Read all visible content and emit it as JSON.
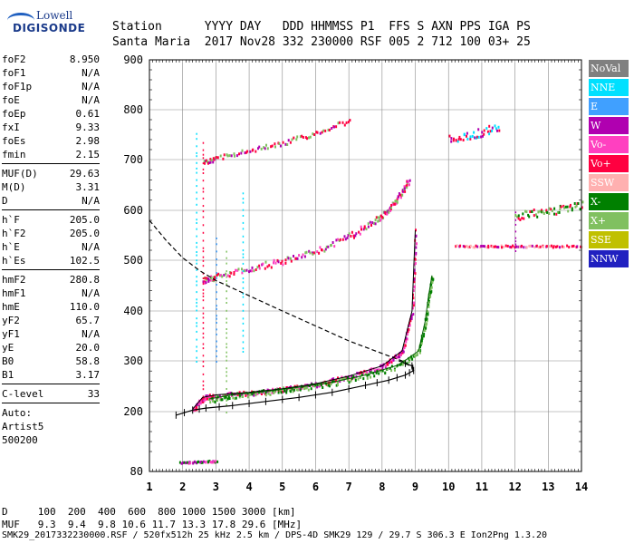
{
  "logo": {
    "line1": "Lowell",
    "line2": "DIGISONDE"
  },
  "header": {
    "row1": "Station      YYYY DAY   DDD HHMMSS P1  FFS S AXN PPS IGA PS",
    "row2": "Santa Maria  2017 Nov28 332 230000 RSF 005 2 712 100 03+ 25"
  },
  "params": {
    "group1": [
      {
        "k": "foF2",
        "v": "8.950"
      },
      {
        "k": "foF1",
        "v": "N/A"
      },
      {
        "k": "foF1p",
        "v": "N/A"
      },
      {
        "k": "foE",
        "v": "N/A"
      },
      {
        "k": "foEp",
        "v": "0.61"
      },
      {
        "k": "fxI",
        "v": "9.33"
      },
      {
        "k": "foEs",
        "v": "2.98"
      },
      {
        "k": "fmin",
        "v": "2.15"
      }
    ],
    "group2": [
      {
        "k": "MUF(D)",
        "v": "29.63"
      },
      {
        "k": "M(D)",
        "v": "3.31"
      },
      {
        "k": "D",
        "v": "N/A"
      }
    ],
    "group3": [
      {
        "k": "h`F",
        "v": "205.0"
      },
      {
        "k": "h`F2",
        "v": "205.0"
      },
      {
        "k": "h`E",
        "v": "N/A"
      },
      {
        "k": "h`Es",
        "v": "102.5"
      }
    ],
    "group4": [
      {
        "k": "hmF2",
        "v": "280.8"
      },
      {
        "k": "hmF1",
        "v": "N/A"
      },
      {
        "k": "hmE",
        "v": "110.0"
      },
      {
        "k": "yF2",
        "v": "65.7"
      },
      {
        "k": "yF1",
        "v": "N/A"
      },
      {
        "k": "yE",
        "v": "20.0"
      },
      {
        "k": "B0",
        "v": "58.8"
      },
      {
        "k": "B1",
        "v": "3.17"
      }
    ],
    "group5": [
      {
        "k": "C-level",
        "v": "33"
      }
    ],
    "auto": [
      "Auto:",
      "Artist5",
      "500200"
    ]
  },
  "legend": [
    {
      "label": "NoVal",
      "color": "#808080"
    },
    {
      "label": "NNE",
      "color": "#00e0ff"
    },
    {
      "label": "E",
      "color": "#40a0ff"
    },
    {
      "label": "W",
      "color": "#b000b0"
    },
    {
      "label": "Vo-",
      "color": "#ff40c0"
    },
    {
      "label": "Vo+",
      "color": "#ff0040"
    },
    {
      "label": "SSW",
      "color": "#ffb0b0"
    },
    {
      "label": "X-",
      "color": "#008000"
    },
    {
      "label": "X+",
      "color": "#80c060"
    },
    {
      "label": "SSE",
      "color": "#c0c000"
    },
    {
      "label": "NNW",
      "color": "#2020c0"
    }
  ],
  "footer": {
    "row1": "D     100  200  400  600  800 1000 1500 3000 [km]",
    "row2": "MUF   9.3  9.4  9.8 10.6 11.7 13.3 17.8 29.6 [MHz]",
    "line": "SMK29_2017332230000.RSF / 520fx512h 25 kHz 2.5 km / DPS-4D SMK29 129 / 29.7 S 306.3 E Ion2Png 1.3.20"
  },
  "chart_data": {
    "type": "scatter",
    "x_ticks": [
      "1",
      "2",
      "3",
      "4",
      "5",
      "6",
      "7",
      "8",
      "9",
      "10",
      "11",
      "12",
      "13",
      "14"
    ],
    "y_ticks": [
      "80",
      "200",
      "300",
      "400",
      "500",
      "600",
      "700",
      "800",
      "900"
    ],
    "xlim": [
      1,
      14
    ],
    "ylim": [
      80,
      900
    ],
    "grid": true,
    "traces": {
      "o_trace_F2": {
        "x": [
          2.3,
          2.6,
          3.0,
          4.0,
          5.0,
          6.0,
          7.0,
          8.0,
          8.6,
          8.9,
          9.0
        ],
        "y": [
          205,
          228,
          233,
          238,
          245,
          255,
          270,
          290,
          320,
          400,
          560
        ]
      },
      "x_trace_F2": {
        "x": [
          2.8,
          3.5,
          4.5,
          5.5,
          6.5,
          7.5,
          8.5,
          9.1,
          9.3,
          9.4,
          9.5
        ],
        "y": [
          225,
          233,
          240,
          248,
          258,
          272,
          292,
          320,
          380,
          430,
          470
        ]
      },
      "second_hop_o": {
        "x": [
          2.6,
          3.0,
          4.0,
          5.0,
          6.0,
          7.0,
          7.8,
          8.2,
          8.5,
          8.8
        ],
        "y": [
          462,
          470,
          485,
          500,
          520,
          550,
          580,
          605,
          630,
          660
        ]
      },
      "third_hop_o": {
        "x": [
          2.6,
          3.0,
          4.0,
          5.0,
          6.0,
          7.0
        ],
        "y": [
          695,
          705,
          720,
          735,
          755,
          780
        ]
      },
      "es_trace": {
        "x": [
          1.9,
          2.2,
          2.5,
          2.8,
          3.0
        ],
        "y": [
          100,
          100,
          101,
          102,
          102
        ]
      },
      "far_range_cluster": {
        "x": [
          10.0,
          10.5,
          11.0,
          11.5
        ],
        "y": [
          742,
          750,
          758,
          765
        ]
      },
      "oblique_right": {
        "x": [
          12.0,
          12.5,
          13.0,
          13.5,
          14.0
        ],
        "y": [
          590,
          595,
          600,
          605,
          612
        ]
      },
      "oblique_band_530": {
        "x": [
          10.2,
          10.8,
          11.4,
          12.0,
          12.6,
          13.2,
          14.0
        ],
        "y": [
          530,
          530,
          530,
          530,
          530,
          530,
          530
        ]
      }
    },
    "model_profile_curve": {
      "x": [
        1.8,
        2.3,
        2.7,
        3.5,
        4.5,
        5.5,
        6.5,
        7.5,
        8.2,
        8.7,
        8.95,
        8.9,
        8.5
      ],
      "y": [
        193,
        203,
        207,
        212,
        220,
        228,
        238,
        252,
        262,
        272,
        281,
        290,
        300
      ]
    },
    "model_dashed_curve": {
      "x": [
        1.0,
        1.5,
        2.0,
        2.5,
        3.0,
        4.0,
        5.0,
        6.0,
        7.0,
        8.0,
        8.6,
        8.95
      ],
      "y": [
        580,
        540,
        505,
        480,
        460,
        430,
        400,
        370,
        340,
        315,
        300,
        285
      ]
    }
  }
}
